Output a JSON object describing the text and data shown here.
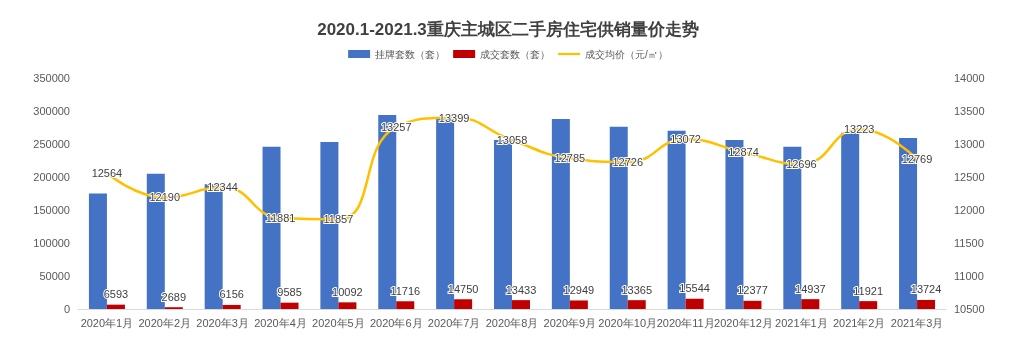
{
  "chart_data": {
    "type": "bar",
    "title": "2020.1-2021.3重庆主城区二手房住宅供销量价走势",
    "categories": [
      "2020年1月",
      "2020年2月",
      "2020年3月",
      "2020年4月",
      "2020年5月",
      "2020年6月",
      "2020年7月",
      "2020年8月",
      "2020年9月",
      "2020年10月",
      "2020年11月",
      "2020年12月",
      "2021年1月",
      "2021年2月",
      "2021年3月"
    ],
    "series": [
      {
        "name": "挂牌套数（套）",
        "color": "#4472c4",
        "values": [
          175000,
          205000,
          189000,
          246000,
          253000,
          294000,
          291000,
          256000,
          288000,
          276000,
          270000,
          256000,
          246000,
          267000,
          259000
        ]
      },
      {
        "name": "成交套数（套）",
        "color": "#c00000",
        "values": [
          6593,
          2689,
          6156,
          9585,
          10092,
          11716,
          14750,
          13433,
          12949,
          13365,
          15544,
          12377,
          14937,
          11921,
          13724
        ],
        "data_labels": true
      },
      {
        "name": "成交均价（元/㎡）",
        "type": "line",
        "axis": "y2",
        "color": "#ffc000",
        "values": [
          12564,
          12190,
          12344,
          11881,
          11857,
          13257,
          13399,
          13058,
          12785,
          12726,
          13072,
          12874,
          12696,
          13223,
          12769
        ],
        "data_labels": true,
        "marker": "none"
      }
    ],
    "ylim": [
      0,
      350000
    ],
    "yticks": [
      0,
      50000,
      100000,
      150000,
      200000,
      250000,
      300000,
      350000
    ],
    "y2lim": [
      10500,
      14000
    ],
    "y2ticks": [
      10500,
      11000,
      11500,
      12000,
      12500,
      13000,
      13500,
      14000
    ],
    "grid": false,
    "legend": "top"
  }
}
